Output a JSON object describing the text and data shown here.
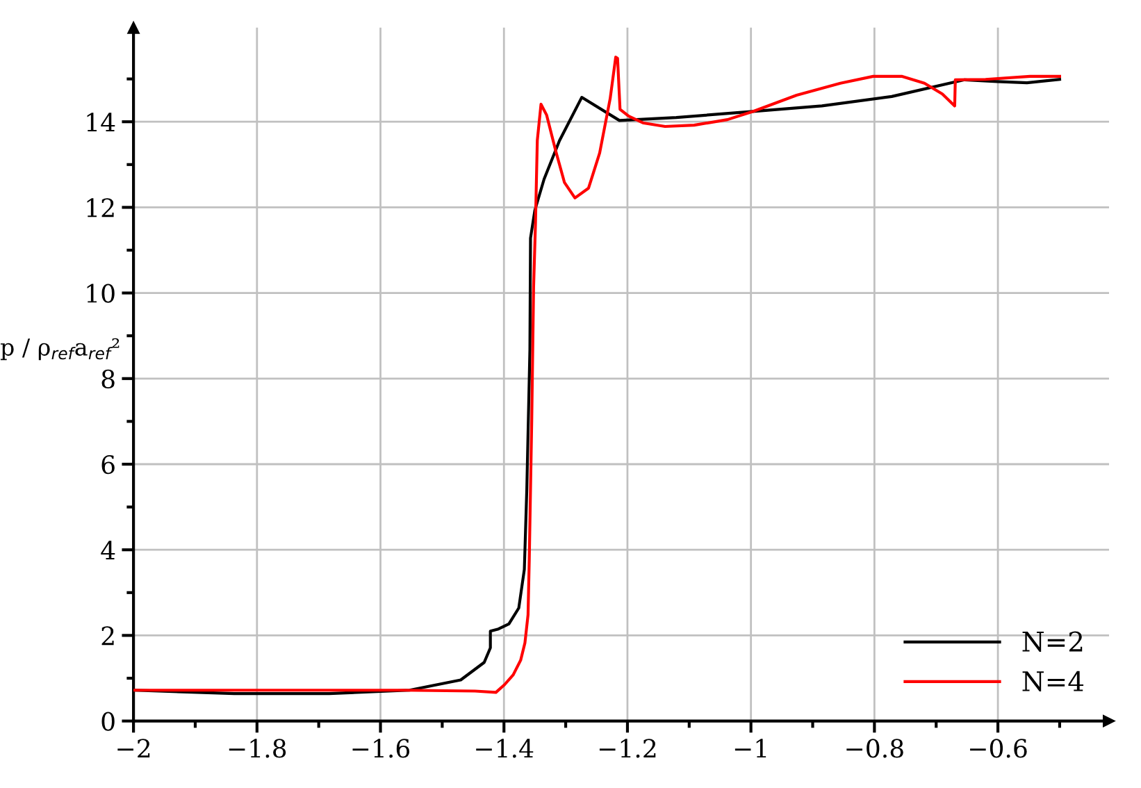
{
  "chart_data": {
    "type": "line",
    "ylabel": "p / ρ$_{ref}$a$_{ref}$²",
    "xlim": [
      -2,
      -0.42
    ],
    "ylim": [
      0,
      16.2
    ],
    "xticks": [
      {
        "value": -2,
        "label": "−2"
      },
      {
        "value": -1.9,
        "label": null
      },
      {
        "value": -1.8,
        "label": "−1.8"
      },
      {
        "value": -1.7,
        "label": null
      },
      {
        "value": -1.6,
        "label": "−1.6"
      },
      {
        "value": -1.5,
        "label": null
      },
      {
        "value": -1.4,
        "label": "−1.4"
      },
      {
        "value": -1.3,
        "label": null
      },
      {
        "value": -1.2,
        "label": "−1.2"
      },
      {
        "value": -1.1,
        "label": null
      },
      {
        "value": -1,
        "label": "−1"
      },
      {
        "value": -0.9,
        "label": null
      },
      {
        "value": -0.8,
        "label": "−0.8"
      },
      {
        "value": -0.7,
        "label": null
      },
      {
        "value": -0.6,
        "label": "−0.6"
      },
      {
        "value": -0.5,
        "label": null
      }
    ],
    "yticks": [
      0,
      {
        "value": 1,
        "label": null
      },
      2,
      {
        "value": 3,
        "label": null
      },
      4,
      {
        "value": 5,
        "label": null
      },
      6,
      {
        "value": 7,
        "label": null
      },
      8,
      {
        "value": 9,
        "label": null
      },
      10,
      {
        "value": 11,
        "label": null
      },
      12,
      {
        "value": 13,
        "label": null
      },
      14,
      {
        "value": 15,
        "label": null
      }
    ],
    "grid": true,
    "legend": "bottom right",
    "line_style": "solid",
    "series": [
      {
        "name": "N=2",
        "color": "#000000",
        "x": [
          -2,
          -1.837,
          -1.683,
          -1.553,
          -1.47,
          -1.432,
          -1.422,
          -1.422,
          -1.409,
          -1.392,
          -1.376,
          -1.367,
          -1.363,
          -1.358,
          -1.357,
          -1.35,
          -1.335,
          -1.31,
          -1.274,
          -1.213,
          -1.121,
          -0.997,
          -0.885,
          -0.772,
          -0.654,
          -0.601,
          -0.553,
          -0.5
        ],
        "values": [
          0.72,
          0.64,
          0.64,
          0.72,
          0.96,
          1.37,
          1.71,
          2.1,
          2.15,
          2.27,
          2.64,
          3.54,
          5.41,
          8.67,
          11.28,
          11.93,
          12.66,
          13.56,
          14.57,
          14.03,
          14.1,
          14.24,
          14.37,
          14.59,
          14.98,
          14.94,
          14.91,
          14.99
        ]
      },
      {
        "name": "N=4",
        "color": "#ff0000",
        "x": [
          -2,
          -1.565,
          -1.447,
          -1.413,
          -1.399,
          -1.385,
          -1.373,
          -1.366,
          -1.361,
          -1.359,
          -1.355,
          -1.352,
          -1.349,
          -1.346,
          -1.34,
          -1.331,
          -1.316,
          -1.302,
          -1.285,
          -1.263,
          -1.245,
          -1.228,
          -1.219,
          -1.216,
          -1.212,
          -1.198,
          -1.174,
          -1.139,
          -1.092,
          -1.038,
          -0.997,
          -0.926,
          -0.855,
          -0.802,
          -0.755,
          -0.719,
          -0.69,
          -0.67,
          -0.669,
          -0.62,
          -0.548,
          -0.5
        ],
        "values": [
          0.72,
          0.72,
          0.7,
          0.67,
          0.85,
          1.08,
          1.42,
          1.83,
          2.48,
          3.78,
          7.04,
          10.14,
          11.6,
          13.56,
          14.41,
          14.16,
          13.31,
          12.58,
          12.22,
          12.45,
          13.27,
          14.54,
          15.51,
          15.48,
          14.29,
          14.13,
          13.97,
          13.89,
          13.92,
          14.05,
          14.24,
          14.62,
          14.9,
          15.06,
          15.06,
          14.9,
          14.65,
          14.37,
          14.98,
          14.99,
          15.06,
          15.06
        ]
      }
    ]
  }
}
